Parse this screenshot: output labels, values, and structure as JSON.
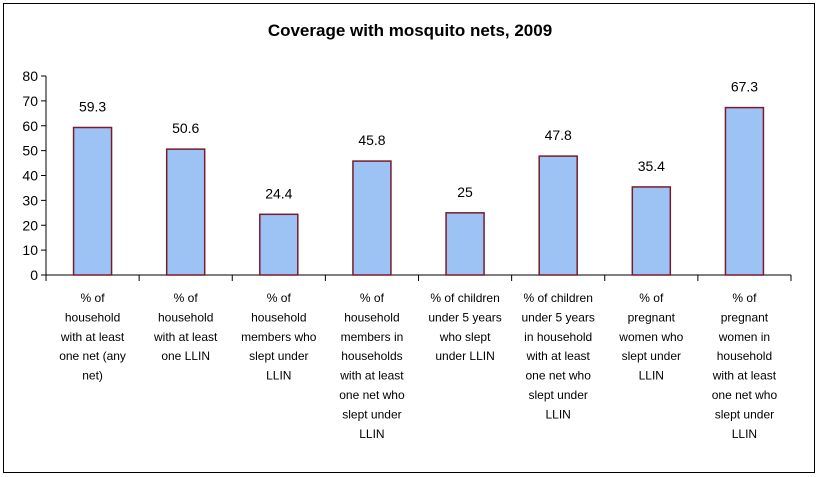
{
  "chart_data": {
    "type": "bar",
    "title": "Coverage with mosquito nets, 2009",
    "xlabel": "",
    "ylabel": "",
    "ylim": [
      0,
      80
    ],
    "yticks": [
      0,
      10,
      20,
      30,
      40,
      50,
      60,
      70,
      80
    ],
    "grid": false,
    "legend": "none",
    "bar_color": "#9dc3f5",
    "bar_edge_color": "#7a1a2a",
    "categories": [
      "% of household with at least one net (any net)",
      "% of household with at least one LLIN",
      "% of household members who slept under LLIN",
      "% of household members in households with at least one net who slept under LLIN",
      "% of children under 5 years who slept under LLIN",
      "% of children under 5 years in household with at least one net who slept under LLIN",
      "% of pregnant women who slept under LLIN",
      "% of pregnant women in household with at least one net who slept under LLIN"
    ],
    "category_lines": [
      [
        "% of",
        "household",
        "with at least",
        "one net (any",
        "net)"
      ],
      [
        "% of",
        "household",
        "with at least",
        "one LLIN"
      ],
      [
        "% of",
        "household",
        "members who",
        "slept under",
        "LLIN"
      ],
      [
        "% of",
        "household",
        "members in",
        "households",
        "with at least",
        "one net who",
        "slept under",
        "LLIN"
      ],
      [
        "% of children",
        "under 5 years",
        "who slept",
        "under LLIN"
      ],
      [
        "% of children",
        "under 5 years",
        "in household",
        "with at least",
        "one net who",
        "slept under",
        "LLIN"
      ],
      [
        "% of",
        "pregnant",
        "women who",
        "slept under",
        "LLIN"
      ],
      [
        "% of",
        "pregnant",
        "women in",
        "household",
        "with at least",
        "one net who",
        "slept under",
        "LLIN"
      ]
    ],
    "values": [
      59.3,
      50.6,
      24.4,
      45.8,
      25,
      47.8,
      35.4,
      67.3
    ],
    "value_labels": [
      "59.3",
      "50.6",
      "24.4",
      "45.8",
      "25",
      "47.8",
      "35.4",
      "67.3"
    ]
  }
}
